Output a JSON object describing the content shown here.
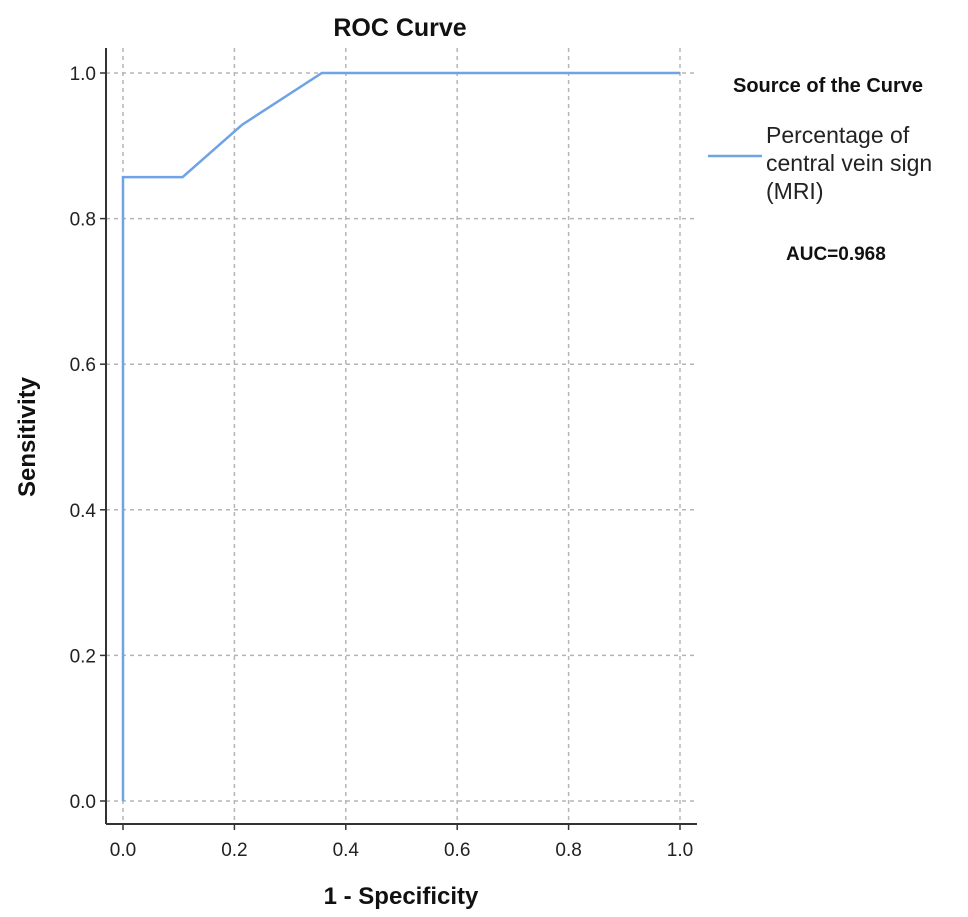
{
  "chart_data": {
    "type": "line",
    "title": "ROC Curve",
    "xlabel": "1 - Specificity",
    "ylabel": "Sensitivity",
    "xlim": [
      0,
      1
    ],
    "ylim": [
      0,
      1
    ],
    "x_ticks": [
      "0.0",
      "0.2",
      "0.4",
      "0.6",
      "0.8",
      "1.0"
    ],
    "y_ticks": [
      "0.0",
      "0.2",
      "0.4",
      "0.6",
      "0.8",
      "1.0"
    ],
    "grid": true,
    "legend_position": "right",
    "legend_title": "Source of the Curve",
    "series": [
      {
        "name": "Percentage of central vein sign (MRI)",
        "legend_lines": [
          "Percentage of",
          "central vein sign",
          "(MRI)"
        ],
        "color": "#6fa3e6",
        "x": [
          0.0,
          0.0,
          0.107,
          0.214,
          0.357,
          1.0
        ],
        "y": [
          0.0,
          0.857,
          0.857,
          0.929,
          1.0,
          1.0
        ]
      }
    ],
    "annotation": "AUC=0.968"
  }
}
